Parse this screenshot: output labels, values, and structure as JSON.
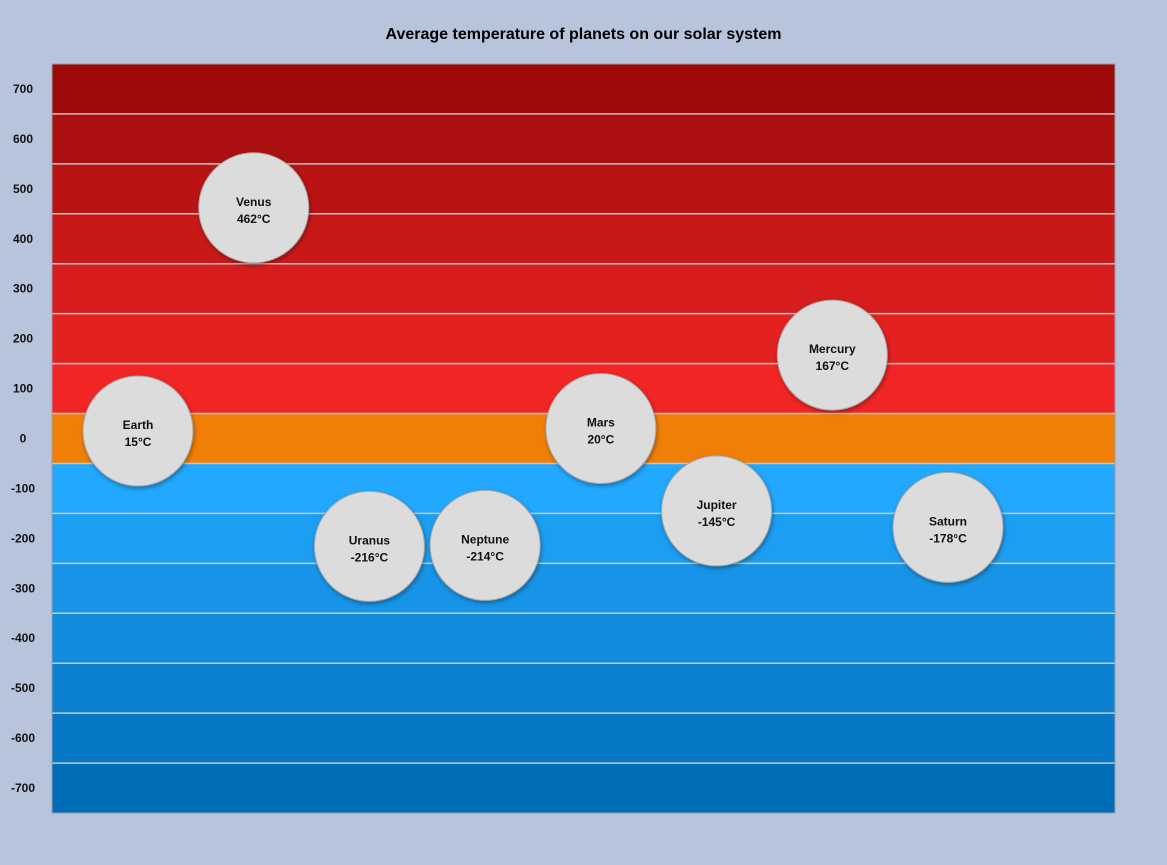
{
  "chart_data": {
    "type": "scatter",
    "title": "Average temperature of planets on our solar system",
    "xlabel": "",
    "ylabel": "",
    "ylim": [
      -750,
      750
    ],
    "y_ticks": [
      700,
      600,
      500,
      400,
      300,
      200,
      100,
      0,
      -100,
      -200,
      -300,
      -400,
      -500,
      -600,
      -700
    ],
    "grid": true,
    "legend": "none",
    "unit": "°C",
    "points": [
      {
        "name": "Earth",
        "value": 15
      },
      {
        "name": "Venus",
        "value": 462
      },
      {
        "name": "Uranus",
        "value": -216
      },
      {
        "name": "Neptune",
        "value": -214
      },
      {
        "name": "Mars",
        "value": 20
      },
      {
        "name": "Jupiter",
        "value": -145
      },
      {
        "name": "Mercury",
        "value": 167
      },
      {
        "name": "Saturn",
        "value": -178
      }
    ],
    "band_colors": {
      "hot_top": "#9e0a0a",
      "hot_bottom": "#f22525",
      "zero": "#f07f08",
      "cold_top": "#22a8ff",
      "cold_bottom": "#006db8"
    },
    "bubble_color": "#dcdcdc"
  }
}
